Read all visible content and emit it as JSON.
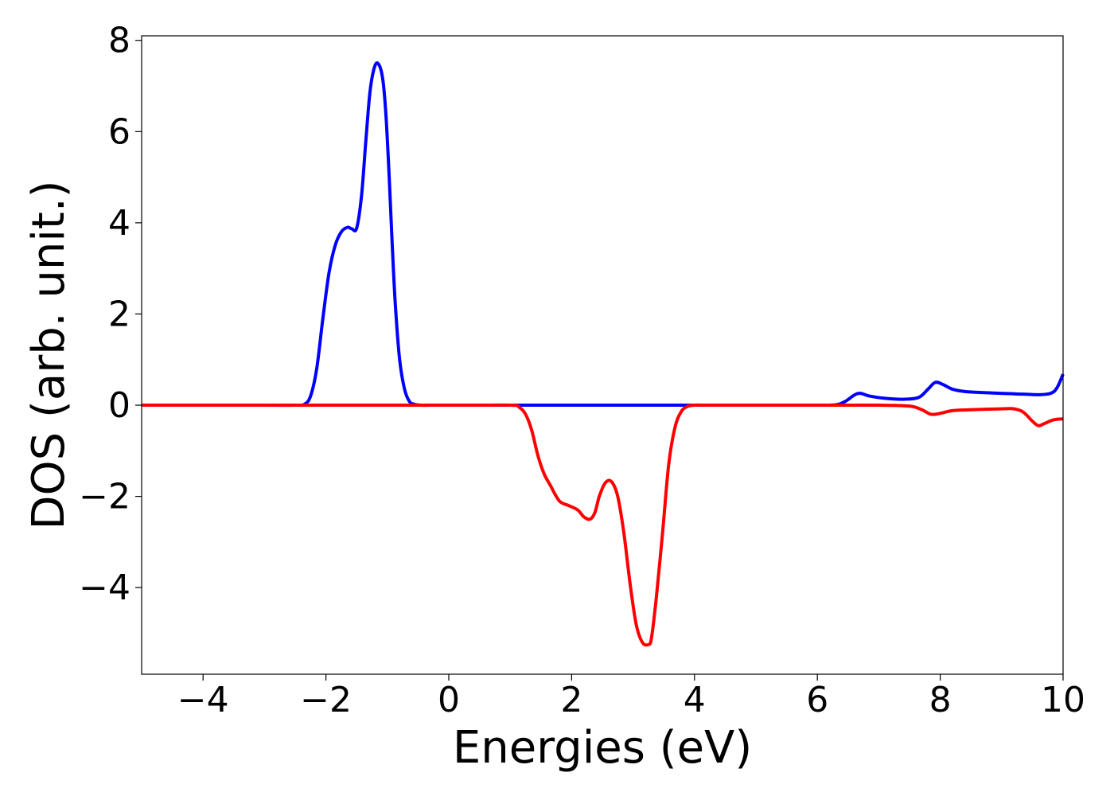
{
  "chart_data": {
    "type": "line",
    "title": "",
    "xlabel": "Energies (eV)",
    "ylabel": "DOS (arb. unit.)",
    "xlim": [
      -5,
      10
    ],
    "ylim": [
      -5.9,
      8.1
    ],
    "grid": false,
    "legend": "none",
    "xticks": [
      -4,
      -2,
      0,
      2,
      4,
      6,
      8,
      10
    ],
    "yticks": [
      -4,
      -2,
      0,
      2,
      4,
      6,
      8
    ],
    "xtick_labels": [
      "−4",
      "−2",
      "0",
      "2",
      "4",
      "6",
      "8",
      "10"
    ],
    "ytick_labels": [
      "−4",
      "−2",
      "0",
      "2",
      "4",
      "6",
      "8"
    ],
    "series": [
      {
        "color": "#0000ff",
        "x": [
          -5,
          -3.0,
          -2.5,
          -2.35,
          -2.25,
          -2.15,
          -2.05,
          -1.95,
          -1.85,
          -1.75,
          -1.65,
          -1.58,
          -1.5,
          -1.42,
          -1.35,
          -1.28,
          -1.2,
          -1.13,
          -1.07,
          -1.02,
          -0.97,
          -0.92,
          -0.87,
          -0.8,
          -0.72,
          -0.64,
          -0.56,
          -0.45,
          -0.3,
          0,
          1,
          2,
          3,
          4,
          5,
          6,
          6.3,
          6.45,
          6.6,
          6.7,
          6.85,
          7.1,
          7.4,
          7.65,
          7.8,
          7.92,
          8.05,
          8.2,
          8.4,
          8.8,
          9.2,
          9.6,
          9.8,
          9.9,
          10.0
        ],
        "y": [
          0,
          0,
          0,
          0.02,
          0.2,
          0.8,
          1.9,
          2.9,
          3.5,
          3.8,
          3.9,
          3.87,
          3.88,
          4.6,
          5.8,
          6.9,
          7.45,
          7.45,
          7.1,
          6.3,
          5.0,
          3.5,
          2.2,
          1.0,
          0.35,
          0.08,
          0.02,
          0,
          0,
          0,
          0,
          0,
          0,
          0,
          0,
          0,
          0.01,
          0.08,
          0.22,
          0.26,
          0.2,
          0.15,
          0.13,
          0.17,
          0.35,
          0.5,
          0.45,
          0.35,
          0.3,
          0.27,
          0.25,
          0.23,
          0.26,
          0.38,
          0.68
        ]
      },
      {
        "color": "#ff0000",
        "x": [
          -5,
          0,
          1.0,
          1.15,
          1.25,
          1.35,
          1.45,
          1.55,
          1.65,
          1.8,
          1.95,
          2.1,
          2.2,
          2.3,
          2.38,
          2.45,
          2.55,
          2.65,
          2.75,
          2.85,
          2.95,
          3.05,
          3.15,
          3.25,
          3.3,
          3.38,
          3.48,
          3.58,
          3.68,
          3.78,
          3.88,
          4.0,
          4.2,
          5.0,
          6.0,
          7.0,
          7.5,
          7.7,
          7.85,
          8.0,
          8.2,
          8.5,
          9.0,
          9.2,
          9.35,
          9.5,
          9.6,
          9.7,
          9.85,
          10.0
        ],
        "y": [
          0,
          0,
          0,
          -0.05,
          -0.2,
          -0.55,
          -1.1,
          -1.5,
          -1.75,
          -2.1,
          -2.2,
          -2.3,
          -2.45,
          -2.5,
          -2.35,
          -2.0,
          -1.7,
          -1.68,
          -2.0,
          -2.8,
          -3.9,
          -4.8,
          -5.2,
          -5.25,
          -5.1,
          -4.2,
          -2.8,
          -1.3,
          -0.5,
          -0.15,
          -0.03,
          0,
          0,
          0,
          0,
          0,
          -0.02,
          -0.1,
          -0.2,
          -0.18,
          -0.12,
          -0.1,
          -0.08,
          -0.08,
          -0.15,
          -0.35,
          -0.45,
          -0.4,
          -0.32,
          -0.3
        ]
      }
    ]
  }
}
